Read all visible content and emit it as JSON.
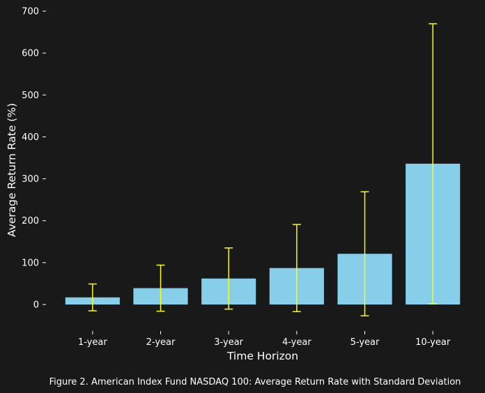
{
  "figure": {
    "caption": "Figure 2. American Index Fund NASDAQ 100: Average Return Rate with Standard Deviation"
  },
  "colors": {
    "background": "#191919",
    "bar": "#87ceeb",
    "error_bar": "#ffff00",
    "text": "#ffffff"
  },
  "chart_data": {
    "type": "bar",
    "title": "",
    "xlabel": "Time Horizon",
    "ylabel": "Average Return Rate (%)",
    "categories": [
      "1-year",
      "2-year",
      "3-year",
      "4-year",
      "5-year",
      "10-year"
    ],
    "values": [
      17,
      39,
      62,
      87,
      121,
      336
    ],
    "error": [
      32,
      55,
      73,
      104,
      148,
      334
    ],
    "ylim": [
      -50,
      700
    ],
    "yticks": [
      0,
      100,
      200,
      300,
      400,
      500,
      600,
      700
    ],
    "grid": false,
    "legend": "none"
  }
}
